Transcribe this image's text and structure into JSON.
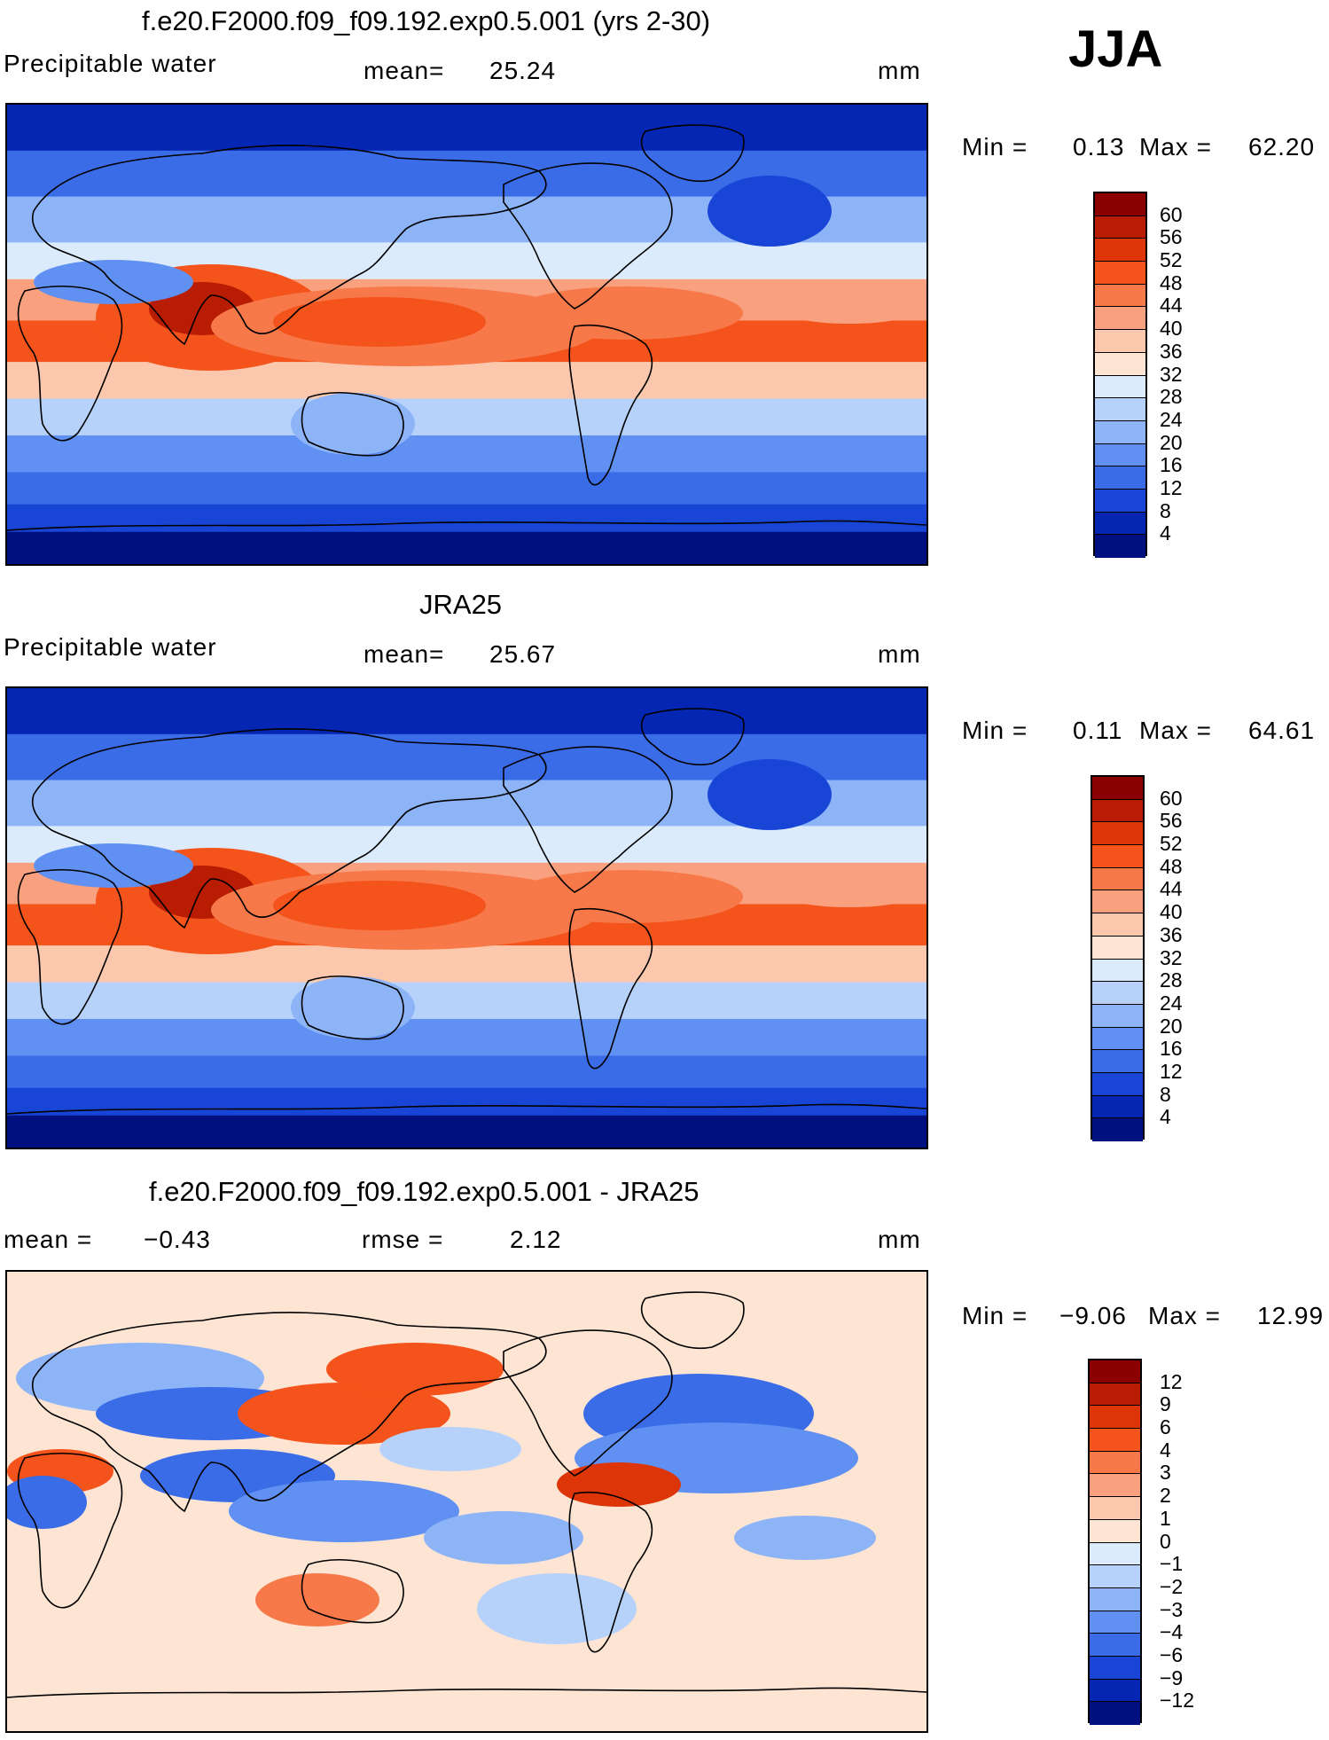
{
  "season": "JJA",
  "panels": [
    {
      "title": "f.e20.F2000.f09_f09.192.exp0.5.001 (yrs 2-30)",
      "left_label": "Precipitable water",
      "center_label": "mean=",
      "center_value": "25.24",
      "right_label": "",
      "right_value": "",
      "units": "mm",
      "minmax": {
        "min_label": "Min =",
        "min": "0.13",
        "max_label": "Max =",
        "max": "62.20"
      },
      "colorbar": {
        "levels": [
          "60",
          "56",
          "52",
          "48",
          "44",
          "40",
          "36",
          "32",
          "28",
          "24",
          "20",
          "16",
          "12",
          "8",
          "4"
        ],
        "colors": [
          "#8b0000",
          "#b81c02",
          "#dd3508",
          "#f4541b",
          "#f7794a",
          "#f9a07e",
          "#fbc8ad",
          "#fde4d3",
          "#dcebfb",
          "#b6d2fb",
          "#8cb4f7",
          "#5f90f2",
          "#3a6ce8",
          "#1845d6",
          "#0525b3",
          "#00117f"
        ]
      },
      "map_fields": {
        "kind": "abs",
        "base": "#2a57e8",
        "ocean_pole": "#0a1c8c"
      }
    },
    {
      "title": "JRA25",
      "left_label": "Precipitable water",
      "center_label": "mean=",
      "center_value": "25.67",
      "right_label": "",
      "right_value": "",
      "units": "mm",
      "minmax": {
        "min_label": "Min =",
        "min": "0.11",
        "max_label": "Max =",
        "max": "64.61"
      },
      "colorbar": {
        "levels": [
          "60",
          "56",
          "52",
          "48",
          "44",
          "40",
          "36",
          "32",
          "28",
          "24",
          "20",
          "16",
          "12",
          "8",
          "4"
        ],
        "colors": [
          "#8b0000",
          "#b81c02",
          "#dd3508",
          "#f4541b",
          "#f7794a",
          "#f9a07e",
          "#fbc8ad",
          "#fde4d3",
          "#dcebfb",
          "#b6d2fb",
          "#8cb4f7",
          "#5f90f2",
          "#3a6ce8",
          "#1845d6",
          "#0525b3",
          "#00117f"
        ]
      },
      "map_fields": {
        "kind": "abs",
        "base": "#2a57e8",
        "ocean_pole": "#0a1c8c"
      }
    },
    {
      "title": "f.e20.F2000.f09_f09.192.exp0.5.001 - JRA25",
      "left_label": "mean =",
      "left_value": "−0.43",
      "center_label": "rmse =",
      "center_value": "2.12",
      "units": "mm",
      "minmax": {
        "min_label": "Min =",
        "min": "−9.06",
        "max_label": "Max =",
        "max": "12.99"
      },
      "colorbar": {
        "levels": [
          "12",
          "9",
          "6",
          "4",
          "3",
          "2",
          "1",
          "0",
          "−1",
          "−2",
          "−3",
          "−4",
          "−6",
          "−9",
          "−12"
        ],
        "colors": [
          "#8b0000",
          "#b81c02",
          "#dd3508",
          "#f4541b",
          "#f7794a",
          "#f9a07e",
          "#fbc8ad",
          "#fde4d3",
          "#dcebfb",
          "#b6d2fb",
          "#8cb4f7",
          "#5f90f2",
          "#3a6ce8",
          "#1845d6",
          "#0525b3",
          "#00117f"
        ]
      },
      "map_fields": {
        "kind": "diff",
        "base": "#fde4d3"
      }
    }
  ]
}
